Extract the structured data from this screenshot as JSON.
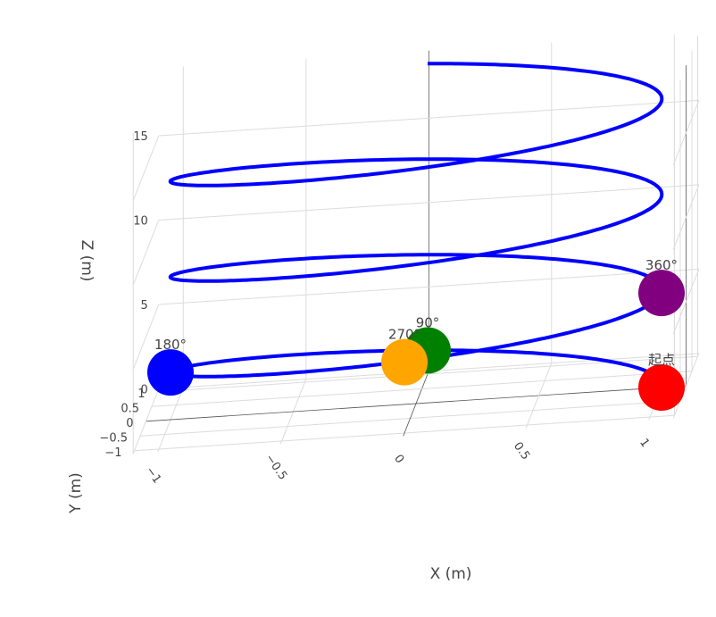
{
  "chart_data": {
    "type": "scatter3d",
    "xlabel": "X (m)",
    "ylabel": "Y (m)",
    "zlabel": "Z (m)",
    "xlim": [
      -1.1,
      1.1
    ],
    "ylim": [
      -1.1,
      1.1
    ],
    "zlim": [
      0,
      19
    ],
    "x_ticks": [
      "−1",
      "−0.5",
      "0",
      "0.5",
      "1"
    ],
    "y_ticks": [
      "−1",
      "−0.5",
      "0",
      "0.5",
      "1"
    ],
    "z_ticks": [
      "0",
      "5",
      "10",
      "15"
    ],
    "grid": true,
    "series": [
      {
        "mode": "line",
        "color": "#0000ff",
        "helix": {
          "radius": 1,
          "turns": 3.25,
          "z_start": 0,
          "z_end": 18.4,
          "start_angle_deg": 0
        }
      },
      {
        "mode": "markers+text",
        "points": [
          {
            "label": "起点",
            "x": 1,
            "y": 0,
            "z": 0,
            "color": "#ff0000"
          },
          {
            "label": "90°",
            "x": 0,
            "y": 1,
            "z": 1.4,
            "color": "#008000"
          },
          {
            "label": "180°",
            "x": -1,
            "y": 0,
            "z": 2.8,
            "color": "#0000ff"
          },
          {
            "label": "270°",
            "x": 0,
            "y": -1,
            "z": 4.2,
            "color": "#ffa500"
          },
          {
            "label": "360°",
            "x": 1,
            "y": 0,
            "z": 5.6,
            "color": "#800080"
          }
        ]
      }
    ]
  }
}
